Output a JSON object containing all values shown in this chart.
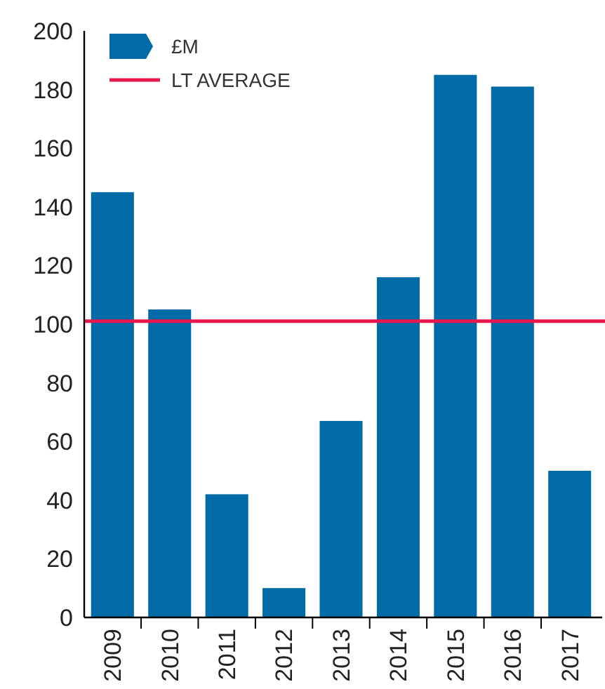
{
  "chart_data": {
    "type": "bar",
    "categories": [
      "2009",
      "2010",
      "2011",
      "2012",
      "2013",
      "2014",
      "2015",
      "2016",
      "2017"
    ],
    "series": [
      {
        "name": "£M",
        "color": "#006ba6",
        "values": [
          145,
          105,
          42,
          10,
          67,
          116,
          185,
          181,
          50
        ]
      }
    ],
    "ylim": [
      0,
      200
    ],
    "yticks": [
      0,
      20,
      40,
      60,
      80,
      100,
      120,
      140,
      160,
      180,
      200
    ],
    "grid": false,
    "legend": "top left",
    "ref_lines": [
      {
        "axis": "y",
        "value": 101,
        "label": "LT AVERAGE",
        "color": "#e8174d"
      }
    ]
  }
}
